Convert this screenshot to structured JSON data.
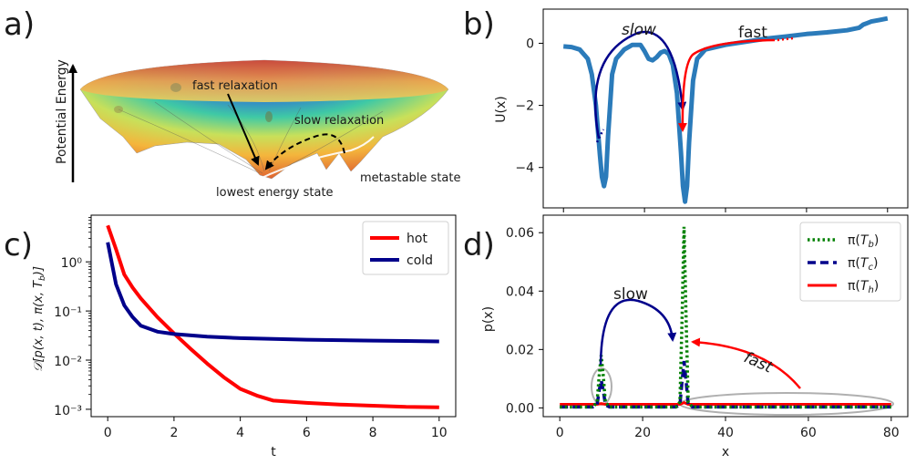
{
  "panels": {
    "a": {
      "label": "a)"
    },
    "b": {
      "label": "b)"
    },
    "c": {
      "label": "c)"
    },
    "d": {
      "label": "d)"
    }
  },
  "landscape": {
    "axis_label": "Potential Energy",
    "labels": {
      "fast": "fast relaxation",
      "slow": "slow relaxation",
      "meta": "metastable state",
      "lowest": "lowest energy state"
    }
  },
  "colors": {
    "hot": "#ff0000",
    "cold": "#00008b",
    "potential": "#2b7bba",
    "b_dist": "#008000",
    "ellipse": "#b0b0b0"
  },
  "chart_data": [
    {
      "id": "b",
      "type": "line",
      "title": "",
      "xlabel": "",
      "ylabel": "U(x)",
      "xlim": [
        -5,
        85
      ],
      "ylim": [
        -5.3,
        1.1
      ],
      "yticks": [
        "0",
        "−2",
        "−4"
      ],
      "series": [
        {
          "name": "U(x)",
          "x": [
            0,
            2,
            4,
            6,
            7,
            8,
            9,
            9.5,
            10,
            10.5,
            11,
            12,
            13,
            15,
            17,
            19,
            20,
            21,
            22,
            23,
            24,
            25,
            26,
            27,
            28,
            29,
            29.5,
            30,
            30.5,
            31,
            32,
            33,
            35,
            40,
            45,
            50,
            55,
            60,
            65,
            70,
            73,
            74,
            75,
            76,
            78,
            80
          ],
          "y": [
            -0.1,
            -0.12,
            -0.2,
            -0.5,
            -1.0,
            -2.0,
            -3.6,
            -4.3,
            -4.6,
            -4.3,
            -3.0,
            -1.0,
            -0.5,
            -0.2,
            -0.05,
            -0.05,
            -0.25,
            -0.5,
            -0.55,
            -0.45,
            -0.3,
            -0.25,
            -0.35,
            -0.7,
            -1.6,
            -3.5,
            -4.6,
            -5.1,
            -4.6,
            -3.2,
            -1.2,
            -0.5,
            -0.2,
            -0.05,
            0.05,
            0.15,
            0.22,
            0.3,
            0.35,
            0.42,
            0.5,
            0.6,
            0.65,
            0.7,
            0.75,
            0.8
          ]
        }
      ],
      "annotations": [
        "slow",
        "fast"
      ]
    },
    {
      "id": "c",
      "type": "line",
      "title": "",
      "xlabel": "t",
      "ylabel": "D[p(x,t), π(x,T_b)]",
      "xlim": [
        -0.5,
        10.5
      ],
      "ylim_log10": [
        -3.15,
        0.95
      ],
      "xticks": [
        "0",
        "2",
        "4",
        "6",
        "8",
        "10"
      ],
      "yticks": [
        "10⁰",
        "10⁻¹",
        "10⁻²",
        "10⁻³"
      ],
      "legend": "top-right",
      "series": [
        {
          "name": "hot",
          "x": [
            0,
            0.25,
            0.5,
            0.75,
            1,
            1.5,
            2,
            2.5,
            3,
            3.5,
            4,
            4.5,
            5,
            6,
            7,
            8,
            9,
            10
          ],
          "values": [
            5.5,
            1.8,
            0.55,
            0.3,
            0.18,
            0.075,
            0.035,
            0.017,
            0.0085,
            0.0045,
            0.0026,
            0.0019,
            0.0015,
            0.00135,
            0.00125,
            0.00118,
            0.00112,
            0.0011
          ]
        },
        {
          "name": "cold",
          "x": [
            0,
            0.25,
            0.5,
            0.75,
            1,
            1.5,
            2,
            3,
            4,
            5,
            6,
            7,
            8,
            9,
            10
          ],
          "values": [
            2.5,
            0.35,
            0.13,
            0.075,
            0.05,
            0.038,
            0.034,
            0.03,
            0.028,
            0.027,
            0.026,
            0.0255,
            0.025,
            0.0245,
            0.024
          ]
        }
      ]
    },
    {
      "id": "d",
      "type": "line",
      "title": "",
      "xlabel": "x",
      "ylabel": "p(x)",
      "xlim": [
        -4,
        84
      ],
      "ylim": [
        -0.003,
        0.066
      ],
      "xticks": [
        "0",
        "20",
        "40",
        "60",
        "80"
      ],
      "yticks": [
        "0.00",
        "0.02",
        "0.04",
        "0.06"
      ],
      "legend": "top-right",
      "series": [
        {
          "name": "π(T_b)",
          "style": "dotted",
          "x": [
            0,
            8,
            9,
            9.5,
            10,
            10.5,
            11,
            12,
            28,
            29,
            29.5,
            30,
            30.5,
            31,
            32,
            80
          ],
          "values": [
            0.0003,
            0.0003,
            0.002,
            0.011,
            0.018,
            0.011,
            0.002,
            0.0003,
            0.0003,
            0.002,
            0.03,
            0.062,
            0.03,
            0.002,
            0.0003,
            0.0003
          ]
        },
        {
          "name": "π(T_c)",
          "style": "dashed",
          "x": [
            0,
            8,
            9,
            9.5,
            10,
            10.5,
            11,
            12,
            28,
            29,
            29.5,
            30,
            30.5,
            31,
            32,
            80
          ],
          "values": [
            0.0003,
            0.0003,
            0.001,
            0.006,
            0.0095,
            0.006,
            0.001,
            0.0003,
            0.0003,
            0.001,
            0.009,
            0.016,
            0.009,
            0.001,
            0.0003,
            0.0003
          ]
        },
        {
          "name": "π(T_h)",
          "style": "solid",
          "x": [
            0,
            9,
            10,
            11,
            29,
            30,
            31,
            80
          ],
          "values": [
            0.0012,
            0.0012,
            0.0015,
            0.0012,
            0.0012,
            0.0018,
            0.0012,
            0.0012
          ]
        }
      ],
      "annotations": [
        "slow",
        "fast"
      ]
    }
  ]
}
